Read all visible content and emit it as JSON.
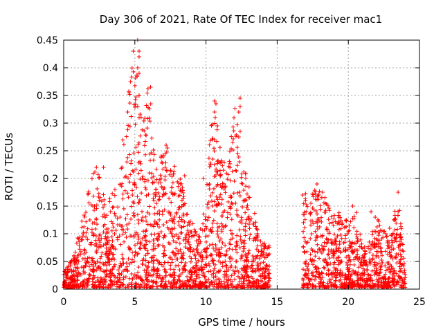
{
  "chart_data": {
    "type": "scatter",
    "title": "Day 306 of 2021, Rate Of TEC Index for receiver mac1",
    "xlabel": "GPS time / hours",
    "ylabel": "ROTI / TECUs",
    "xlim": [
      0,
      25
    ],
    "ylim": [
      0,
      0.45
    ],
    "xticks": [
      "0",
      "5",
      "10",
      "15",
      "20",
      "25"
    ],
    "yticks": [
      "0",
      "0.05",
      "0.1",
      "0.15",
      "0.2",
      "0.25",
      "0.3",
      "0.35",
      "0.4",
      "0.45"
    ],
    "grid": true,
    "marker": "+",
    "color": "#ff0000",
    "data_gap_hours": [
      14.9,
      16.7
    ],
    "envelope_hours": [
      0,
      0.5,
      1,
      1.5,
      2,
      2.5,
      3,
      3.5,
      4,
      4.5,
      5,
      5.5,
      6,
      6.5,
      7,
      7.5,
      8,
      8.5,
      9,
      9.5,
      10,
      10.5,
      11,
      11.5,
      12,
      12.5,
      13,
      13.5,
      14,
      14.5,
      16.8,
      17.5,
      18,
      18.5,
      19,
      19.5,
      20,
      20.5,
      21,
      21.5,
      22,
      22.5,
      23,
      23.5,
      24
    ],
    "envelope_max_roti": [
      0.03,
      0.05,
      0.1,
      0.14,
      0.22,
      0.22,
      0.15,
      0.18,
      0.22,
      0.38,
      0.45,
      0.3,
      0.37,
      0.22,
      0.26,
      0.25,
      0.23,
      0.16,
      0.12,
      0.1,
      0.2,
      0.34,
      0.26,
      0.2,
      0.34,
      0.23,
      0.21,
      0.12,
      0.08,
      0.08,
      0.18,
      0.17,
      0.19,
      0.16,
      0.14,
      0.14,
      0.12,
      0.15,
      0.08,
      0.09,
      0.14,
      0.11,
      0.1,
      0.175,
      0.03
    ],
    "highlight_points": [
      {
        "x": 5.2,
        "y": 0.45
      },
      {
        "x": 5.3,
        "y": 0.43
      },
      {
        "x": 5.3,
        "y": 0.42
      },
      {
        "x": 5.2,
        "y": 0.4
      },
      {
        "x": 5.3,
        "y": 0.39
      },
      {
        "x": 4.7,
        "y": 0.375
      },
      {
        "x": 6.1,
        "y": 0.365
      },
      {
        "x": 4.6,
        "y": 0.355
      },
      {
        "x": 5.3,
        "y": 0.35
      },
      {
        "x": 5.2,
        "y": 0.33
      },
      {
        "x": 4.5,
        "y": 0.32
      },
      {
        "x": 5.3,
        "y": 0.31
      },
      {
        "x": 10.6,
        "y": 0.34
      },
      {
        "x": 10.7,
        "y": 0.335
      },
      {
        "x": 10.6,
        "y": 0.32
      },
      {
        "x": 10.8,
        "y": 0.295
      },
      {
        "x": 12.4,
        "y": 0.345
      },
      {
        "x": 12.4,
        "y": 0.33
      },
      {
        "x": 12.3,
        "y": 0.32
      },
      {
        "x": 12.4,
        "y": 0.285
      },
      {
        "x": 12.3,
        "y": 0.275
      },
      {
        "x": 2.3,
        "y": 0.22
      },
      {
        "x": 2.8,
        "y": 0.22
      },
      {
        "x": 3.6,
        "y": 0.18
      },
      {
        "x": 7.2,
        "y": 0.26
      },
      {
        "x": 8.5,
        "y": 0.205
      },
      {
        "x": 9.8,
        "y": 0.2
      },
      {
        "x": 17.8,
        "y": 0.19
      },
      {
        "x": 18.2,
        "y": 0.175
      },
      {
        "x": 20.3,
        "y": 0.15
      },
      {
        "x": 21.6,
        "y": 0.14
      },
      {
        "x": 22.9,
        "y": 0.11
      },
      {
        "x": 23.5,
        "y": 0.175
      },
      {
        "x": 23.5,
        "y": 0.14
      },
      {
        "x": 23.6,
        "y": 0.142
      },
      {
        "x": 16.8,
        "y": 0.17
      }
    ]
  }
}
